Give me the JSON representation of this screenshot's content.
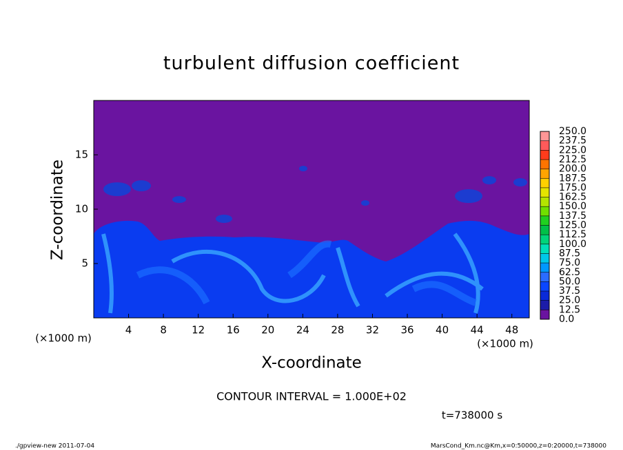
{
  "chart_data": {
    "type": "contour",
    "title": "turbulent diffusion coefficient",
    "x_label": "X-coordinate",
    "y_label": "Z-coordinate",
    "x_unit": "(×1000 m)",
    "y_unit": "(×1000 m)",
    "xlim": [
      0,
      50
    ],
    "ylim": [
      0,
      20
    ],
    "xticks": [
      4,
      8,
      12,
      16,
      20,
      24,
      28,
      32,
      36,
      40,
      44,
      48
    ],
    "yticks": [
      5,
      10,
      15
    ],
    "colorbar": {
      "ticks": [
        {
          "value": 0,
          "label": "0.0"
        },
        {
          "value": 12.5,
          "label": "12.5"
        },
        {
          "value": 25,
          "label": "25.0"
        },
        {
          "value": 37.5,
          "label": "37.5"
        },
        {
          "value": 50,
          "label": "50.0"
        },
        {
          "value": 62.5,
          "label": "62.5"
        },
        {
          "value": 75,
          "label": "75.0"
        },
        {
          "value": 87.5,
          "label": "87.5"
        },
        {
          "value": 100,
          "label": "100.0"
        },
        {
          "value": 112.5,
          "label": "112.5"
        },
        {
          "value": 125,
          "label": "125.0"
        },
        {
          "value": 137.5,
          "label": "137.5"
        },
        {
          "value": 150,
          "label": "150.0"
        },
        {
          "value": 162.5,
          "label": "162.5"
        },
        {
          "value": 175,
          "label": "175.0"
        },
        {
          "value": 187.5,
          "label": "187.5"
        },
        {
          "value": 200,
          "label": "200.0"
        },
        {
          "value": 212.5,
          "label": "212.5"
        },
        {
          "value": 225,
          "label": "225.0"
        },
        {
          "value": 237.5,
          "label": "237.5"
        },
        {
          "value": 250,
          "label": "250.0"
        }
      ],
      "colors": [
        "#6a14a0",
        "#1c1ca8",
        "#0a2ad8",
        "#0a46ff",
        "#2a6cff",
        "#0098ff",
        "#00c8e8",
        "#00e0b8",
        "#00d47a",
        "#00c048",
        "#20d020",
        "#70e000",
        "#b4e400",
        "#e4e400",
        "#ffd000",
        "#ffa400",
        "#ff7400",
        "#ff3c1c",
        "#ff5a5a",
        "#ff9696"
      ]
    },
    "contour_interval": "CONTOUR INTERVAL = 1.000E+02",
    "time_label": "t=738000 s",
    "footer_left": "./gpview-new  2011-07-04",
    "footer_right": "MarsCond_Km.nc@Km,x=0:50000,z=0:20000,t=738000"
  }
}
